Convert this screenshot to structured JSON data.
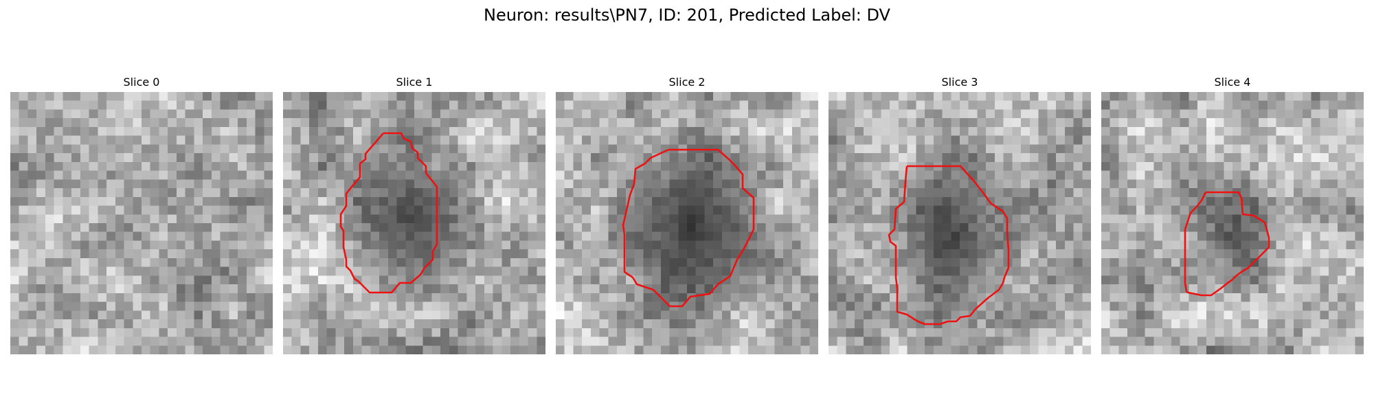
{
  "figure": {
    "title": "Neuron: results\\PN7, ID: 201, Predicted Label: DV"
  },
  "style": {
    "contour_color": "#ee1111"
  },
  "slices": [
    {
      "label": "Slice 0",
      "has_contour": false,
      "seed": 11,
      "blob_strength": 0.15
    },
    {
      "label": "Slice 1",
      "has_contour": true,
      "seed": 23,
      "blob_strength": 0.75
    },
    {
      "label": "Slice 2",
      "has_contour": true,
      "seed": 37,
      "blob_strength": 0.85
    },
    {
      "label": "Slice 3",
      "has_contour": true,
      "seed": 41,
      "blob_strength": 0.7
    },
    {
      "label": "Slice 4",
      "has_contour": true,
      "seed": 53,
      "blob_strength": 0.55
    }
  ]
}
